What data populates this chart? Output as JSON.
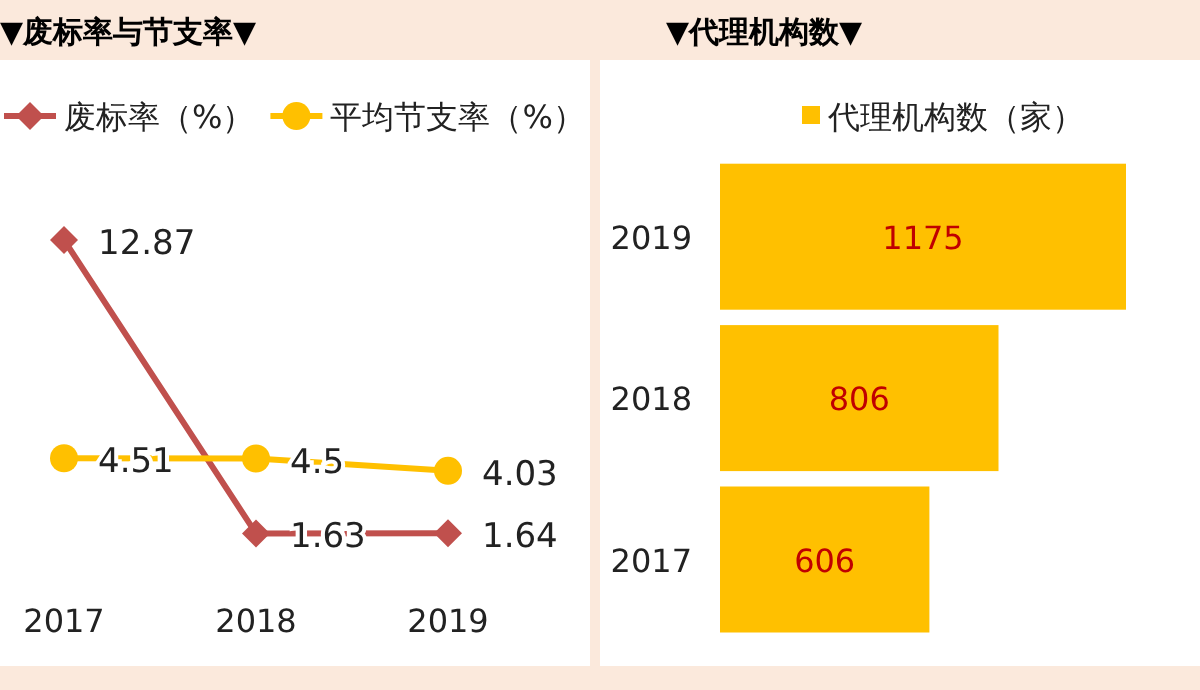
{
  "chart_data": [
    {
      "type": "line",
      "title": "▼废标率与节支率▼",
      "categories": [
        "2017",
        "2018",
        "2019"
      ],
      "series": [
        {
          "name": "废标率（%）",
          "color": "#c0504d",
          "marker": "diamond",
          "values": [
            12.87,
            1.63,
            1.64
          ]
        },
        {
          "name": "平均节支率（%）",
          "color": "#ffc000",
          "marker": "circle",
          "values": [
            4.51,
            4.5,
            4.03
          ]
        }
      ],
      "tick_labels": "x",
      "data_labels": true,
      "legend": "top"
    },
    {
      "type": "bar",
      "orientation": "horizontal",
      "title": "▼代理机构数▼",
      "categories": [
        "2019",
        "2018",
        "2017"
      ],
      "series": [
        {
          "name": "代理机构数（家）",
          "color": "#ffc000",
          "values": [
            1175,
            806,
            606
          ]
        }
      ],
      "tick_labels": "y",
      "data_labels": true,
      "legend": "top"
    }
  ]
}
